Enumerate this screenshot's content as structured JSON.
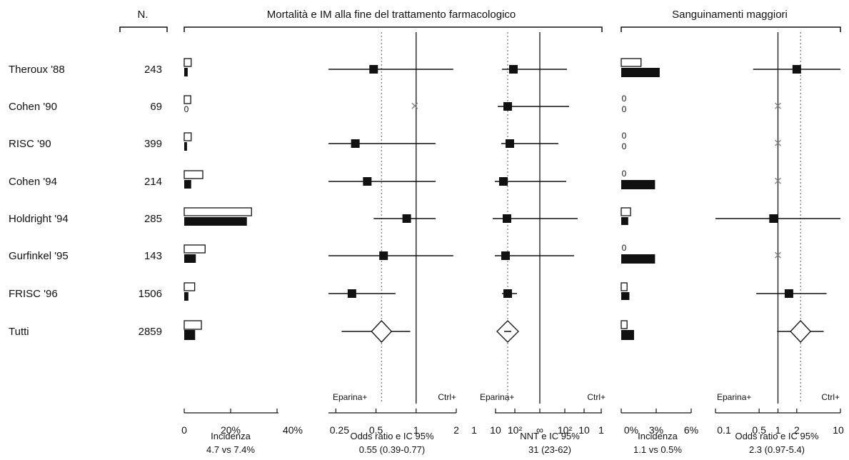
{
  "headers": {
    "n": "N.",
    "mortality": "Mortalità e IM alla fine del trattamento farmacologico",
    "bleeding": "Sanguinamenti maggiori"
  },
  "chart_data": {
    "type": "forest",
    "studies": [
      {
        "name": "Theroux '88",
        "n": "243",
        "inc_ctrl": 3.0,
        "inc_hep": 1.5,
        "or": 0.48,
        "or_lo": 0.22,
        "or_hi": 1.9,
        "nnt": [
          10.5,
          0.8,
          4
        ],
        "bleed_ctrl": 1.7,
        "bleed_hep": 3.3,
        "bleed_or": 2,
        "bleed_lo": 0.4,
        "bleed_hi": 10,
        "bleed_zero_ctrl": false,
        "bleed_zero_hep": false
      },
      {
        "name": "Cohen '90",
        "n": "69",
        "inc_ctrl": 2.8,
        "inc_hep": 0,
        "or": 1.0,
        "or_lo": null,
        "or_hi": null,
        "or_x": true,
        "nnt": [
          12,
          1.3,
          3.5
        ],
        "bleed_ctrl": 0,
        "bleed_hep": 0,
        "bleed_or": 1,
        "bleed_x": true,
        "bleed_zero_ctrl": true,
        "bleed_zero_hep": true
      },
      {
        "name": "RISC '90",
        "n": "399",
        "inc_ctrl": 3.0,
        "inc_hep": 1.2,
        "or": 0.35,
        "or_lo": 0.22,
        "or_hi": 1.4,
        "nnt": [
          12,
          1.2,
          5.5
        ],
        "bleed_ctrl": 0,
        "bleed_hep": 0,
        "bleed_or": 1,
        "bleed_x": true,
        "bleed_zero_ctrl": true,
        "bleed_zero_hep": true
      },
      {
        "name": "Cohen '94",
        "n": "214",
        "inc_ctrl": 8.0,
        "inc_hep": 3.0,
        "or": 0.43,
        "or_lo": 0.22,
        "or_hi": 1.4,
        "nnt": [
          17,
          1.6,
          4
        ],
        "bleed_ctrl": 0,
        "bleed_hep": 2.9,
        "bleed_or": 1,
        "bleed_x": true,
        "bleed_zero_ctrl": true,
        "bleed_zero_hep": false
      },
      {
        "name": "Holdright '94",
        "n": "285",
        "inc_ctrl": 29.0,
        "inc_hep": 27.0,
        "or": 0.85,
        "or_lo": 0.48,
        "or_hi": 1.4,
        "nnt": [
          14,
          1.8,
          2.5
        ],
        "bleed_ctrl": 0.8,
        "bleed_hep": 0.6,
        "bleed_or": 0.85,
        "bleed_lo": 0.1,
        "bleed_hi": 10,
        "bleed_zero_ctrl": false,
        "bleed_zero_hep": false
      },
      {
        "name": "Gurfinkel '95",
        "n": "143",
        "inc_ctrl": 9.0,
        "inc_hep": 5.0,
        "or": 0.57,
        "or_lo": 0.22,
        "or_hi": 1.9,
        "nnt": [
          16,
          1.8,
          3.5
        ],
        "bleed_ctrl": 0,
        "bleed_hep": 2.9,
        "bleed_or": 1,
        "bleed_x": true,
        "bleed_zero_ctrl": true,
        "bleed_zero_hep": false
      },
      {
        "name": "FRISC '96",
        "n": "1506",
        "inc_ctrl": 4.5,
        "inc_hep": 1.8,
        "or": 0.33,
        "or_lo": 0.22,
        "or_hi": 0.7,
        "nnt": [
          13,
          3,
          40
        ],
        "bleed_ctrl": 0.5,
        "bleed_hep": 0.7,
        "bleed_or": 1.5,
        "bleed_lo": 0.45,
        "bleed_hi": 6,
        "bleed_zero_ctrl": false,
        "bleed_zero_hep": false
      }
    ],
    "overall": {
      "name": "Tutti",
      "n": "2859",
      "inc_ctrl": 7.4,
      "inc_hep": 4.7,
      "or": 0.55,
      "or_lo": 0.39,
      "or_hi": 0.77,
      "nnt": 31,
      "nnt_lo": 23,
      "nnt_hi": 62,
      "bleed_ctrl": 0.5,
      "bleed_hep": 1.1,
      "bleed_or": 2.3,
      "bleed_lo": 0.97,
      "bleed_hi": 5.4
    },
    "zero_mark": "0",
    "panels": {
      "incidence": {
        "ticks": [
          "0",
          "20%",
          "40%"
        ],
        "max": 40,
        "caption": "Incidenza",
        "summary": "4.7 vs 7.4%"
      },
      "odds": {
        "ticks": [
          "0.25",
          "0.5",
          "1",
          "2"
        ],
        "tick_values": [
          0.25,
          0.5,
          1,
          2
        ],
        "min": 0.22,
        "max": 2,
        "caption": "Odds ratio e IC 95%",
        "summary": "0.55 (0.39-0.77)",
        "left_label": "Eparina+",
        "right_label": "Ctrl+"
      },
      "nnt": {
        "ticks": [
          "1",
          "10",
          "10²",
          "∞",
          "10²",
          "10",
          "1"
        ],
        "caption": "NNT e IC 95%",
        "summary": "31 (23-62)",
        "left_label": "Eparina+",
        "right_label": "Ctrl+"
      },
      "bleed_incidence": {
        "ticks": [
          "0%",
          "3%",
          "6%"
        ],
        "max": 6,
        "caption": "Incidenza",
        "summary": "1.1 vs 0.5%"
      },
      "bleed_odds": {
        "ticks": [
          "0.1",
          "0.5",
          "1",
          "2",
          "10"
        ],
        "tick_values": [
          0.1,
          0.5,
          1,
          2,
          10
        ],
        "min": 0.1,
        "max": 10,
        "caption": "Odds ratio e IC 95%",
        "summary": "2.3 (0.97-5.4)",
        "left_label": "Eparina+",
        "right_label": "Ctrl+"
      }
    }
  }
}
